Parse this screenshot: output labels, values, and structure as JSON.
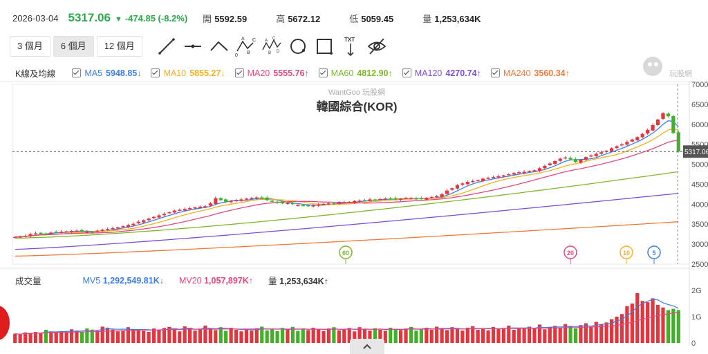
{
  "quote": {
    "date": "2026-03-04",
    "price": "5317.06",
    "change": "-474.85 (-8.2%)",
    "open_label": "開",
    "open": "5592.59",
    "high_label": "高",
    "high": "5672.12",
    "low_label": "低",
    "low": "5059.45",
    "volume_label": "量",
    "volume": "1,253,634K"
  },
  "toolbar": {
    "periods": [
      "3 個月",
      "6 個月",
      "12 個月"
    ],
    "active_period": "6 個月",
    "tools": [
      "line-tool-icon",
      "horizontal-line-tool-icon",
      "path-tool-icon",
      "abcd-pattern-icon",
      "abcde-pattern-icon",
      "circle-tool-icon",
      "rectangle-tool-icon",
      "text-tool-icon",
      "hide-drawings-icon"
    ]
  },
  "legend": {
    "section_label": "K線及均線",
    "items": [
      {
        "name": "MA5",
        "value": "5948.85",
        "arrow": "↓",
        "color": "#3d7ee6"
      },
      {
        "name": "MA10",
        "value": "5855.27",
        "arrow": "↓",
        "color": "#f2b01e"
      },
      {
        "name": "MA20",
        "value": "5555.76",
        "arrow": "↑",
        "color": "#e2467f"
      },
      {
        "name": "MA60",
        "value": "4812.90",
        "arrow": "↑",
        "color": "#7cb82a"
      },
      {
        "name": "MA120",
        "value": "4270.74",
        "arrow": "↑",
        "color": "#7d4fd8"
      },
      {
        "name": "MA240",
        "value": "3560.34",
        "arrow": "↑",
        "color": "#f07a3a"
      }
    ]
  },
  "volume_legend": {
    "section_label": "成交量",
    "mv5_label": "MV5",
    "mv5": "1,292,549.81K",
    "mv5_arrow": "↓",
    "mv20_label": "MV20",
    "mv20": "1,057,897K",
    "mv20_arrow": "↑",
    "vol_label": "量",
    "vol": "1,253,634K",
    "vol_arrow": "↑"
  },
  "logo_text": "玩股網",
  "colors": {
    "up": "#e4353f",
    "down": "#43b02a",
    "accent": "#2ba84a"
  },
  "chart_data": {
    "type": "candlestick",
    "watermark": "WantGoo 玩股網",
    "title": "韓國綜合(KOR)",
    "ylim": [
      2500,
      7000
    ],
    "y_ticks": [
      "7000",
      "6500",
      "6000",
      "5500",
      "5000",
      "4500",
      "4000",
      "3500",
      "3000",
      "2500"
    ],
    "current_price_label": "5317.06",
    "ma_markers": [
      "60",
      "20",
      "10",
      "5"
    ],
    "volume_axis_ticks": [
      "2G",
      "1G",
      "0"
    ],
    "closes": [
      3180,
      3190,
      3210,
      3250,
      3270,
      3280,
      3260,
      3290,
      3300,
      3310,
      3320,
      3330,
      3340,
      3320,
      3310,
      3300,
      3340,
      3360,
      3380,
      3400,
      3420,
      3450,
      3480,
      3510,
      3560,
      3600,
      3640,
      3680,
      3720,
      3760,
      3800,
      3840,
      3860,
      3880,
      3900,
      3920,
      3940,
      3950,
      4020,
      4150,
      4100,
      4060,
      4080,
      4100,
      4120,
      4140,
      4160,
      4170,
      4150,
      4100,
      4060,
      4040,
      4020,
      4030,
      4000,
      3980,
      3960,
      3960,
      3970,
      3990,
      4010,
      4020,
      4010,
      4040,
      4050,
      4060,
      4080,
      4090,
      4100,
      4120,
      4110,
      4130,
      4140,
      4130,
      4120,
      4140,
      4160,
      4150,
      4140,
      4130,
      4160,
      4180,
      4200,
      4250,
      4340,
      4400,
      4480,
      4520,
      4560,
      4580,
      4600,
      4640,
      4660,
      4680,
      4700,
      4720,
      4750,
      4780,
      4800,
      4810,
      4830,
      4850,
      4900,
      4960,
      5020,
      5080,
      5140,
      5170,
      5120,
      5060,
      5110,
      5180,
      5220,
      5260,
      5300,
      5340,
      5400,
      5450,
      5500,
      5560,
      5620,
      5680,
      5760,
      5860,
      5980,
      6120,
      6280,
      6200,
      5780,
      5317
    ],
    "volumes": [
      0.35,
      0.32,
      0.4,
      0.38,
      0.42,
      0.36,
      0.5,
      0.44,
      0.39,
      0.45,
      0.41,
      0.52,
      0.47,
      0.43,
      0.55,
      0.49,
      0.46,
      0.62,
      0.58,
      0.51,
      0.44,
      0.48,
      0.6,
      0.53,
      0.5,
      0.46,
      0.42,
      0.55,
      0.49,
      0.57,
      0.61,
      0.5,
      0.44,
      0.63,
      0.58,
      0.47,
      0.52,
      0.66,
      0.55,
      0.49,
      0.6,
      0.46,
      0.58,
      0.5,
      0.44,
      0.53,
      0.47,
      0.56,
      0.62,
      0.48,
      0.52,
      0.45,
      0.57,
      0.5,
      0.61,
      0.46,
      0.54,
      0.49,
      0.58,
      0.52,
      0.45,
      0.55,
      0.6,
      0.48,
      0.5,
      0.57,
      0.44,
      0.6,
      0.53,
      0.47,
      0.56,
      0.5,
      0.46,
      0.58,
      0.52,
      0.49,
      0.55,
      0.61,
      0.47,
      0.53,
      0.58,
      0.5,
      0.62,
      0.56,
      0.49,
      0.6,
      0.53,
      0.47,
      0.58,
      0.64,
      0.5,
      0.55,
      0.48,
      0.61,
      0.53,
      0.57,
      0.66,
      0.5,
      0.58,
      0.54,
      0.62,
      0.56,
      0.7,
      0.52,
      0.6,
      0.65,
      0.58,
      0.72,
      0.62,
      0.55,
      0.68,
      0.75,
      0.6,
      0.8,
      0.7,
      0.78,
      0.9,
      1.0,
      1.1,
      1.4,
      1.5,
      1.9,
      1.6,
      1.55,
      1.7,
      1.45,
      1.35,
      1.25,
      1.3,
      1.25
    ]
  }
}
